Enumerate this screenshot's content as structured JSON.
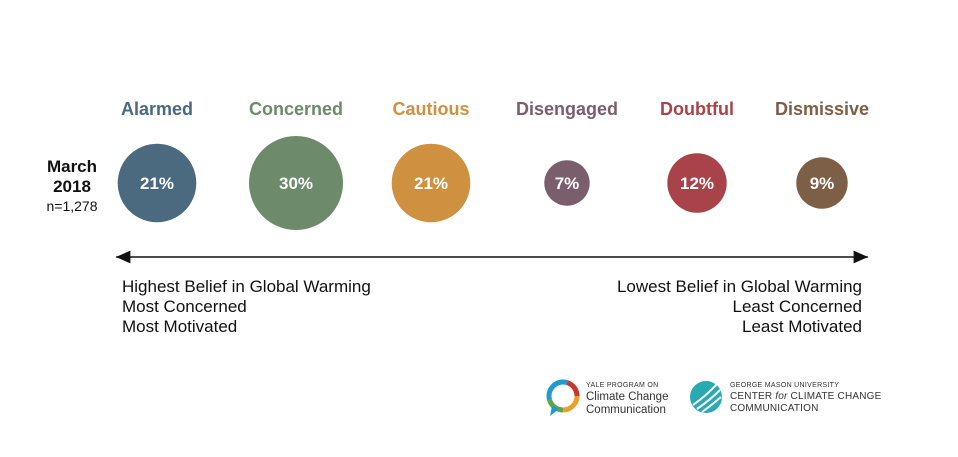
{
  "chart_data": {
    "type": "bubble",
    "period": {
      "title": "March",
      "year": "2018",
      "sample": "n=1,278"
    },
    "categories": [
      "Alarmed",
      "Concerned",
      "Cautious",
      "Disengaged",
      "Doubtful",
      "Dismissive"
    ],
    "values": [
      21,
      30,
      21,
      7,
      12,
      9
    ],
    "value_labels": [
      "21%",
      "30%",
      "21%",
      "7%",
      "12%",
      "9%"
    ],
    "colors": [
      "#4b6a80",
      "#6d8a6b",
      "#cf9140",
      "#7a5e6b",
      "#a8434a",
      "#7d5f47"
    ],
    "scale": {
      "left": [
        "Highest Belief in Global Warming",
        "Most Concerned",
        "Most Motivated"
      ],
      "right": [
        "Lowest Belief in Global Warming",
        "Least Concerned",
        "Least Motivated"
      ]
    }
  },
  "logos": {
    "yale": {
      "small": "YALE PROGRAM ON",
      "line1": "Climate Change",
      "line2": "Communication"
    },
    "gmu": {
      "small": "GEORGE MASON UNIVERSITY",
      "line1a": "CENTER ",
      "line1b": "for",
      "line1c": " CLIMATE CHANGE",
      "line2": "COMMUNICATION"
    }
  }
}
